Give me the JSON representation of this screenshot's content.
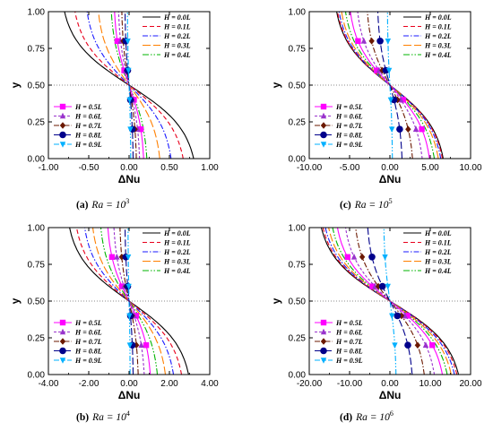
{
  "chart_data": [
    {
      "type": "line",
      "caption_letter": "(a)",
      "caption_text": "Ra = 10",
      "caption_exp": "3",
      "xlabel": "ΔNu",
      "ylabel": "y",
      "xlim": [
        -1.0,
        1.0
      ],
      "ylim": [
        0.0,
        1.0
      ],
      "xticks": [
        "-1.00",
        "-0.50",
        "0.00",
        "0.50",
        "1.00"
      ],
      "yticks": [
        "0.00",
        "0.25",
        "0.50",
        "0.75",
        "1.00"
      ],
      "legend_top": "top-right",
      "legend_bottom": "bottom-left",
      "reference_line_y": 0.5,
      "series": [
        {
          "name": "H = 0.0L",
          "amplitude": 0.8
        },
        {
          "name": "H = 0.1L",
          "amplitude": 0.67
        },
        {
          "name": "H = 0.2L",
          "amplitude": 0.52
        },
        {
          "name": "H = 0.3L",
          "amplitude": 0.38
        },
        {
          "name": "H = 0.4L",
          "amplitude": 0.22
        },
        {
          "name": "H = 0.5L",
          "amplitude": 0.18
        },
        {
          "name": "H = 0.6L",
          "amplitude": 0.13
        },
        {
          "name": "H = 0.7L",
          "amplitude": 0.09
        },
        {
          "name": "H = 0.8L",
          "amplitude": 0.05
        },
        {
          "name": "H = 0.9L",
          "amplitude": 0.02
        }
      ]
    },
    {
      "type": "line",
      "caption_letter": "(b)",
      "caption_text": "Ra = 10",
      "caption_exp": "4",
      "xlabel": "ΔNu",
      "ylabel": "y",
      "xlim": [
        -4.0,
        4.0
      ],
      "ylim": [
        0.0,
        1.0
      ],
      "xticks": [
        "-4.00",
        "-2.00",
        "0.00",
        "2.00",
        "4.00"
      ],
      "yticks": [
        "0.00",
        "0.25",
        "0.50",
        "0.75",
        "1.00"
      ],
      "legend_top": "top-right",
      "legend_bottom": "bottom-left",
      "reference_line_y": 0.5,
      "series": [
        {
          "name": "H = 0.0L",
          "amplitude": 2.95
        },
        {
          "name": "H = 0.1L",
          "amplitude": 2.6
        },
        {
          "name": "H = 0.2L",
          "amplitude": 2.2
        },
        {
          "name": "H = 0.3L",
          "amplitude": 1.8
        },
        {
          "name": "H = 0.4L",
          "amplitude": 1.4
        },
        {
          "name": "H = 0.5L",
          "amplitude": 1.05
        },
        {
          "name": "H = 0.6L",
          "amplitude": 0.75
        },
        {
          "name": "H = 0.7L",
          "amplitude": 0.45
        },
        {
          "name": "H = 0.8L",
          "amplitude": 0.2
        },
        {
          "name": "H = 0.9L",
          "amplitude": 0.05
        }
      ]
    },
    {
      "type": "line",
      "caption_letter": "(c)",
      "caption_text": "Ra = 10",
      "caption_exp": "5",
      "xlabel": "ΔNu",
      "ylabel": "y",
      "xlim": [
        -10.0,
        10.0
      ],
      "ylim": [
        0.0,
        1.0
      ],
      "xticks": [
        "-10.00",
        "-5.00",
        "0.00",
        "5.00",
        "10.00"
      ],
      "yticks": [
        "0.00",
        "0.25",
        "0.50",
        "0.75",
        "1.00"
      ],
      "legend_top": "top-right",
      "legend_bottom": "bottom-left",
      "reference_line_y": 0.5,
      "series": [
        {
          "name": "H = 0.0L",
          "amplitude": 6.6
        },
        {
          "name": "H = 0.1L",
          "amplitude": 6.5
        },
        {
          "name": "H = 0.2L",
          "amplitude": 6.3
        },
        {
          "name": "H = 0.3L",
          "amplitude": 6.0
        },
        {
          "name": "H = 0.4L",
          "amplitude": 5.5
        },
        {
          "name": "H = 0.5L",
          "amplitude": 4.9
        },
        {
          "name": "H = 0.6L",
          "amplitude": 4.0
        },
        {
          "name": "H = 0.7L",
          "amplitude": 2.8
        },
        {
          "name": "H = 0.8L",
          "amplitude": 1.5
        },
        {
          "name": "H = 0.9L",
          "amplitude": 0.3
        }
      ]
    },
    {
      "type": "line",
      "caption_letter": "(d)",
      "caption_text": "Ra = 10",
      "caption_exp": "6",
      "xlabel": "ΔNu",
      "ylabel": "y",
      "xlim": [
        -20.0,
        20.0
      ],
      "ylim": [
        0.0,
        1.0
      ],
      "xticks": [
        "-20.00",
        "-10.00",
        "0.00",
        "10.00",
        "20.00"
      ],
      "yticks": [
        "0.00",
        "0.25",
        "0.50",
        "0.75",
        "1.00"
      ],
      "legend_top": "top-right",
      "legend_bottom": "bottom-left",
      "reference_line_y": 0.5,
      "series": [
        {
          "name": "H = 0.0L",
          "amplitude": 17.0
        },
        {
          "name": "H = 0.1L",
          "amplitude": 16.6
        },
        {
          "name": "H = 0.2L",
          "amplitude": 16.0
        },
        {
          "name": "H = 0.3L",
          "amplitude": 15.2
        },
        {
          "name": "H = 0.4L",
          "amplitude": 14.2
        },
        {
          "name": "H = 0.5L",
          "amplitude": 13.0
        },
        {
          "name": "H = 0.6L",
          "amplitude": 11.0
        },
        {
          "name": "H = 0.7L",
          "amplitude": 8.5
        },
        {
          "name": "H = 0.8L",
          "amplitude": 5.5
        },
        {
          "name": "H = 0.9L",
          "amplitude": 1.5
        }
      ]
    }
  ],
  "series_styles": [
    {
      "color": "#000000",
      "dash": "",
      "marker": "none"
    },
    {
      "color": "#e8001c",
      "dash": "5,3",
      "marker": "none"
    },
    {
      "color": "#1a1aff",
      "dash": "6,2,1.5,2",
      "marker": "none"
    },
    {
      "color": "#ff7f00",
      "dash": "9,3",
      "marker": "none"
    },
    {
      "color": "#00b400",
      "dash": "7,2,1.5,2,1.5,2",
      "marker": "none"
    },
    {
      "color": "#ff00ff",
      "dash": "",
      "marker": "square"
    },
    {
      "color": "#9933cc",
      "dash": "3,2",
      "marker": "triangle-up"
    },
    {
      "color": "#6b1800",
      "dash": "6,2,1.5,2",
      "marker": "diamond"
    },
    {
      "color": "#00008b",
      "dash": "8,3",
      "marker": "circle"
    },
    {
      "color": "#00b0ff",
      "dash": "6,2,1.5,2,1.5,2",
      "marker": "triangle-down"
    }
  ]
}
